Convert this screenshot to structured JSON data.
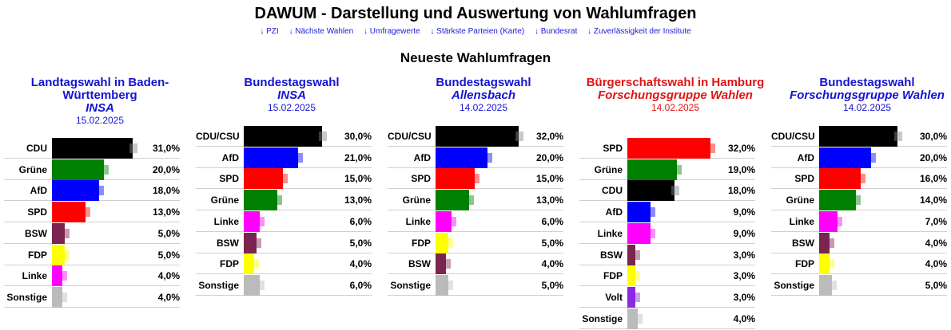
{
  "page": {
    "title": "DAWUM - Darstellung und Auswertung von Wahlumfragen",
    "nav": [
      "↓ PZI",
      "↓ Nächste Wahlen",
      "↓ Umfragewerte",
      "↓ Stärkste Parteien (Karte)",
      "↓ Bundesrat",
      "↓ Zuverlässigkeit der Institute"
    ],
    "subtitle": "Neueste Wahlumfragen"
  },
  "chart_data": [
    {
      "type": "bar",
      "orientation": "horizontal",
      "election": "Landtagswahl in Baden-Württemberg",
      "institute": "INSA",
      "date": "15.02.2025",
      "title_color": "#1414d2",
      "categories": [
        "CDU",
        "Grüne",
        "AfD",
        "SPD",
        "BSW",
        "FDP",
        "Linke",
        "Sonstige"
      ],
      "values": [
        31.0,
        20.0,
        18.0,
        13.0,
        5.0,
        5.0,
        4.0,
        4.0
      ],
      "value_labels": [
        "31,0%",
        "20,0%",
        "18,0%",
        "13,0%",
        "5,0%",
        "5,0%",
        "4,0%",
        "4,0%"
      ],
      "colors": [
        "#000000",
        "#008000",
        "#0000ff",
        "#ff0000",
        "#7b2450",
        "#ffff00",
        "#ff00ff",
        "#bbbbbb"
      ],
      "xlim": [
        0,
        34
      ]
    },
    {
      "type": "bar",
      "orientation": "horizontal",
      "election": "Bundestagswahl",
      "institute": "INSA",
      "date": "15.02.2025",
      "title_color": "#1414d2",
      "categories": [
        "CDU/CSU",
        "AfD",
        "SPD",
        "Grüne",
        "Linke",
        "BSW",
        "FDP",
        "Sonstige"
      ],
      "values": [
        30.0,
        21.0,
        15.0,
        13.0,
        6.0,
        5.0,
        4.0,
        6.0
      ],
      "value_labels": [
        "30,0%",
        "21,0%",
        "15,0%",
        "13,0%",
        "6,0%",
        "5,0%",
        "4,0%",
        "6,0%"
      ],
      "colors": [
        "#000000",
        "#0000ff",
        "#ff0000",
        "#008000",
        "#ff00ff",
        "#7b2450",
        "#ffff00",
        "#bbbbbb"
      ],
      "xlim": [
        0,
        34
      ]
    },
    {
      "type": "bar",
      "orientation": "horizontal",
      "election": "Bundestagswahl",
      "institute": "Allensbach",
      "date": "14.02.2025",
      "title_color": "#1414d2",
      "categories": [
        "CDU/CSU",
        "AfD",
        "SPD",
        "Grüne",
        "Linke",
        "FDP",
        "BSW",
        "Sonstige"
      ],
      "values": [
        32.0,
        20.0,
        15.0,
        13.0,
        6.0,
        5.0,
        4.0,
        5.0
      ],
      "value_labels": [
        "32,0%",
        "20,0%",
        "15,0%",
        "13,0%",
        "6,0%",
        "5,0%",
        "4,0%",
        "5,0%"
      ],
      "colors": [
        "#000000",
        "#0000ff",
        "#ff0000",
        "#008000",
        "#ff00ff",
        "#ffff00",
        "#7b2450",
        "#bbbbbb"
      ],
      "xlim": [
        0,
        34
      ]
    },
    {
      "type": "bar",
      "orientation": "horizontal",
      "election": "Bürgerschaftswahl in Hamburg",
      "institute": "Forschungsgruppe Wahlen",
      "date": "14.02.2025",
      "title_color": "#e01414",
      "categories": [
        "SPD",
        "Grüne",
        "CDU",
        "AfD",
        "Linke",
        "BSW",
        "FDP",
        "Volt",
        "Sonstige"
      ],
      "values": [
        32.0,
        19.0,
        18.0,
        9.0,
        9.0,
        3.0,
        3.0,
        3.0,
        4.0
      ],
      "value_labels": [
        "32,0%",
        "19,0%",
        "18,0%",
        "9,0%",
        "9,0%",
        "3,0%",
        "3,0%",
        "3,0%",
        "4,0%"
      ],
      "colors": [
        "#ff0000",
        "#008000",
        "#000000",
        "#0000ff",
        "#ff00ff",
        "#7b2450",
        "#ffff00",
        "#8a2be2",
        "#bbbbbb"
      ],
      "xlim": [
        0,
        34
      ]
    },
    {
      "type": "bar",
      "orientation": "horizontal",
      "election": "Bundestagswahl",
      "institute": "Forschungsgruppe Wahlen",
      "date": "14.02.2025",
      "title_color": "#1414d2",
      "categories": [
        "CDU/CSU",
        "AfD",
        "SPD",
        "Grüne",
        "Linke",
        "BSW",
        "FDP",
        "Sonstige"
      ],
      "values": [
        30.0,
        20.0,
        16.0,
        14.0,
        7.0,
        4.0,
        4.0,
        5.0
      ],
      "value_labels": [
        "30,0%",
        "20,0%",
        "16,0%",
        "14,0%",
        "7,0%",
        "4,0%",
        "4,0%",
        "5,0%"
      ],
      "colors": [
        "#000000",
        "#0000ff",
        "#ff0000",
        "#008000",
        "#ff00ff",
        "#7b2450",
        "#ffff00",
        "#bbbbbb"
      ],
      "xlim": [
        0,
        34
      ]
    }
  ]
}
